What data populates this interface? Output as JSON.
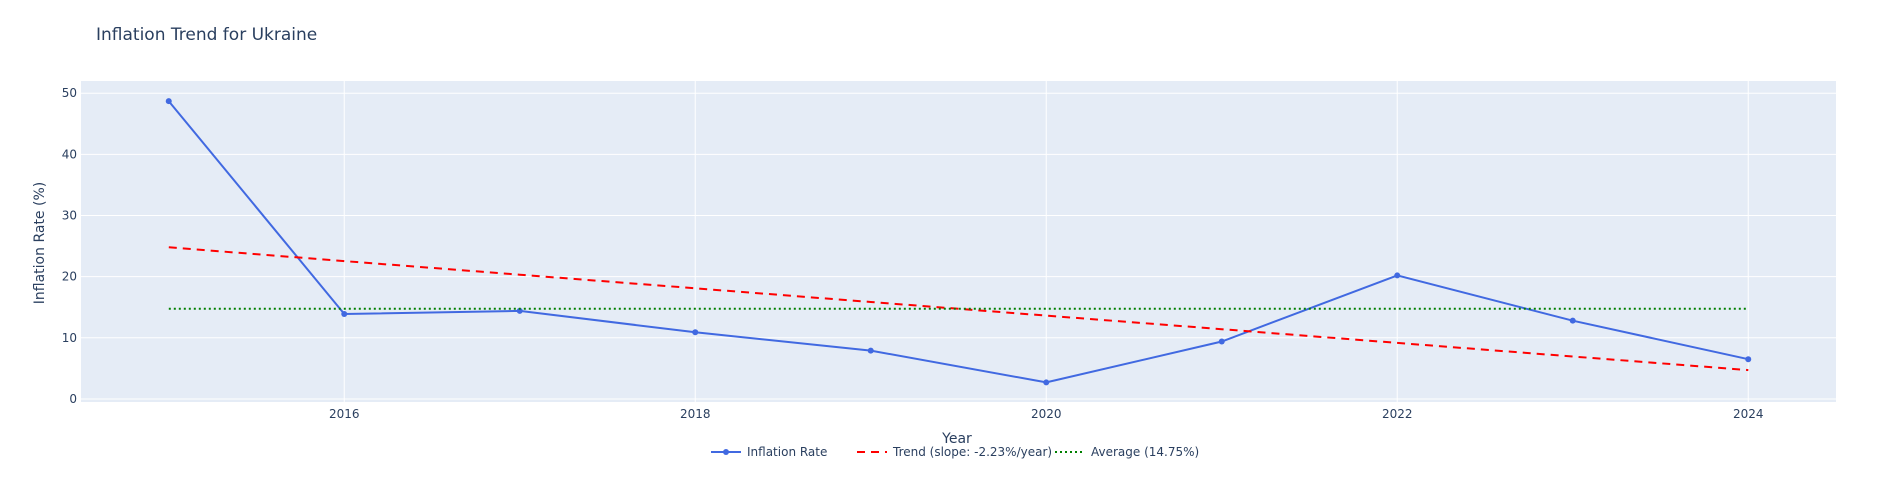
{
  "chart_data": {
    "type": "line",
    "title": "Inflation Trend for Ukraine",
    "xlabel": "Year",
    "ylabel": "Inflation Rate (%)",
    "xlim": [
      2014.5,
      2024.5
    ],
    "ylim": [
      -0.5,
      52
    ],
    "x_ticks": [
      2016,
      2018,
      2020,
      2022,
      2024
    ],
    "y_ticks": [
      0,
      10,
      20,
      30,
      40,
      50
    ],
    "grid": true,
    "legend_position": "bottom-center",
    "x": [
      2015,
      2016,
      2017,
      2018,
      2019,
      2020,
      2021,
      2022,
      2023,
      2024
    ],
    "series": [
      {
        "name": "Inflation Rate",
        "style": "solid-markers",
        "color": "#4169e1",
        "values": [
          48.7,
          13.9,
          14.4,
          10.9,
          7.9,
          2.7,
          9.4,
          20.2,
          12.8,
          6.5
        ]
      },
      {
        "name": "Trend (slope: -2.23%/year)",
        "style": "dashed",
        "color": "#ff0000",
        "values": [
          24.8,
          22.55,
          20.32,
          18.09,
          15.86,
          13.63,
          11.4,
          9.17,
          6.94,
          4.71
        ]
      },
      {
        "name": "Average (14.75%)",
        "style": "dotted",
        "color": "#008000",
        "values": [
          14.75,
          14.75,
          14.75,
          14.75,
          14.75,
          14.75,
          14.75,
          14.75,
          14.75,
          14.75
        ]
      }
    ],
    "colors": {
      "plot_background": "#e5ecf6",
      "grid": "#ffffff",
      "text": "#2a3f5f"
    }
  }
}
